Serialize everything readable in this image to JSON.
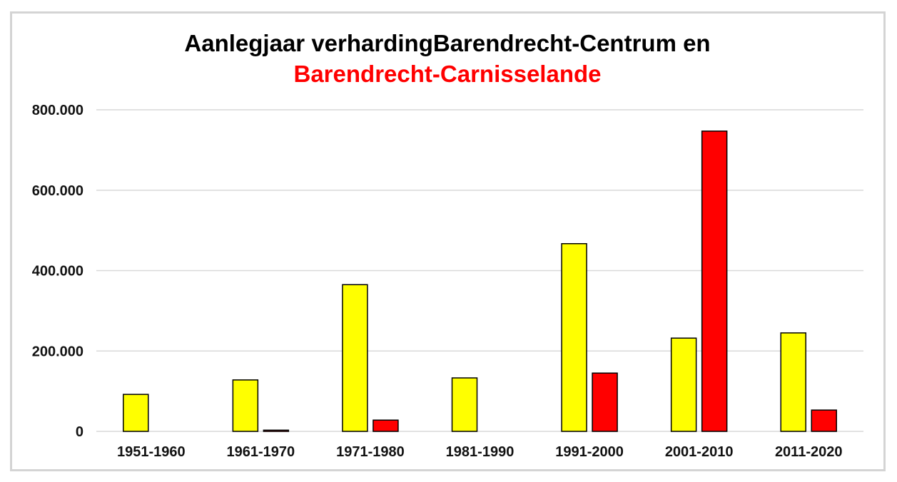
{
  "chart_data": {
    "type": "bar",
    "title_line1": "Aanlegjaar verhardingBarendrecht-Centrum en",
    "title_line2": "Barendrecht-Carnisselande",
    "title_line1_color": "#000000",
    "title_line2_color": "#ff0000",
    "xlabel": "",
    "ylabel": "",
    "ylim": [
      0,
      800000
    ],
    "yticks": [
      0,
      200000,
      400000,
      600000,
      800000
    ],
    "ytick_labels": [
      "0",
      "200.000",
      "400.000",
      "600.000",
      "800.000"
    ],
    "grid": true,
    "legend": "none",
    "categories": [
      "1951-1960",
      "1961-1970",
      "1971-1980",
      "1981-1990",
      "1991-2000",
      "2001-2010",
      "2011-2020"
    ],
    "series": [
      {
        "color": "#ffff00",
        "values": [
          92000,
          128000,
          365000,
          133000,
          467000,
          232000,
          245000
        ]
      },
      {
        "color": "#ff0000",
        "values": [
          0,
          3000,
          28000,
          0,
          145000,
          747000,
          53000
        ]
      }
    ]
  }
}
